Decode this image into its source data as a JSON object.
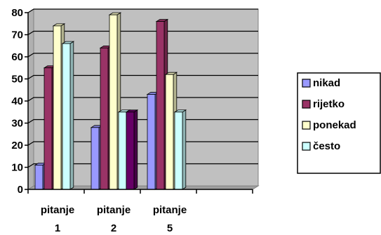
{
  "chart_data": {
    "type": "bar",
    "categories": [
      {
        "line1": "pitanje",
        "line2": "1"
      },
      {
        "line1": "pitanje",
        "line2": "2"
      },
      {
        "line1": "pitanje",
        "line2": "5"
      }
    ],
    "series": [
      {
        "name": "nikad",
        "color": "#9999ff",
        "values": [
          11,
          28,
          43
        ]
      },
      {
        "name": "rijetko",
        "color": "#993366",
        "values": [
          55,
          64,
          76
        ]
      },
      {
        "name": "ponekad",
        "color": "#ffffcc",
        "values": [
          74,
          79,
          52
        ]
      },
      {
        "name": "često",
        "color": "#ccffff",
        "values": [
          66,
          35,
          35
        ]
      }
    ],
    "extra_bars": [
      {
        "category_index": 1,
        "value": 35,
        "color": "#660066"
      }
    ],
    "ylim": [
      0,
      80
    ],
    "yticks": [
      "0",
      "10",
      "20",
      "30",
      "40",
      "50",
      "60",
      "70",
      "80"
    ],
    "plot_background": "#c0c0c0",
    "grid": true,
    "legend_position": "right",
    "style": "3d-clustered-column"
  }
}
